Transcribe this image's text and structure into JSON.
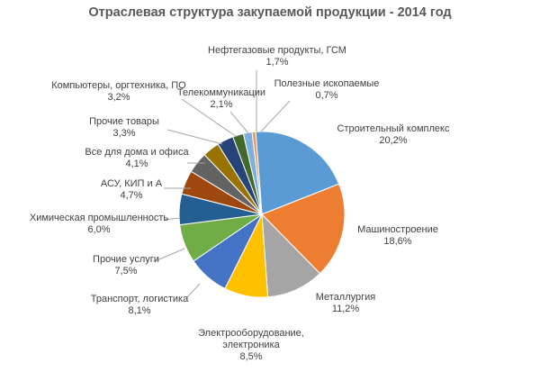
{
  "chart_data": {
    "type": "pie",
    "title": "Отраслевая структура закупаемой продукции - 2014 год",
    "slices": [
      {
        "label": [
          "Строительный комплекс"
        ],
        "value_label": "20,2%",
        "value": 20.2,
        "color": "#5b9bd5"
      },
      {
        "label": [
          "Машиностроение"
        ],
        "value_label": "18,6%",
        "value": 18.6,
        "color": "#ed7d31"
      },
      {
        "label": [
          "Металлургия"
        ],
        "value_label": "11,2%",
        "value": 11.2,
        "color": "#a5a5a5"
      },
      {
        "label": [
          "Электрооборудование,",
          "электроника"
        ],
        "value_label": "8,5%",
        "value": 8.5,
        "color": "#ffc000"
      },
      {
        "label": [
          "Транспорт, логистика"
        ],
        "value_label": "8,1%",
        "value": 8.1,
        "color": "#4472c4"
      },
      {
        "label": [
          "Прочие услуги"
        ],
        "value_label": "7,5%",
        "value": 7.5,
        "color": "#70ad47"
      },
      {
        "label": [
          "Химическая промышленность"
        ],
        "value_label": "6,0%",
        "value": 6.0,
        "color": "#255e91"
      },
      {
        "label": [
          "АСУ, КИП и А"
        ],
        "value_label": "4,7%",
        "value": 4.7,
        "color": "#9e480e"
      },
      {
        "label": [
          "Все для дома и офиса"
        ],
        "value_label": "4,1%",
        "value": 4.1,
        "color": "#636363"
      },
      {
        "label": [
          "Прочие товары"
        ],
        "value_label": "3,3%",
        "value": 3.3,
        "color": "#997300"
      },
      {
        "label": [
          "Компьютеры, оргтехника, ПО"
        ],
        "value_label": "3,2%",
        "value": 3.2,
        "color": "#264478"
      },
      {
        "label": [
          "Телекоммуникации"
        ],
        "value_label": "2,1%",
        "value": 2.1,
        "color": "#43682b"
      },
      {
        "label": [
          "Нефтегазовые продукты, ГСМ"
        ],
        "value_label": "1,7%",
        "value": 1.7,
        "color": "#7cafdd"
      },
      {
        "label": [
          "Полезные ископаемые"
        ],
        "value_label": "0,7%",
        "value": 0.7,
        "color": "#f1975a"
      }
    ]
  }
}
